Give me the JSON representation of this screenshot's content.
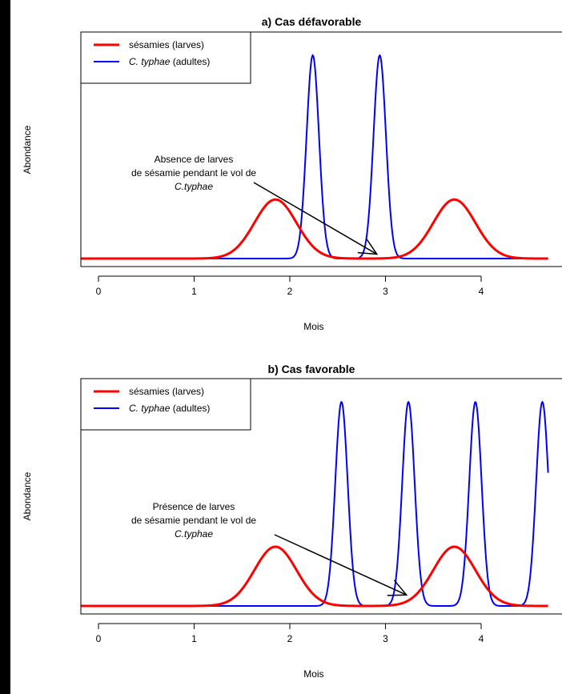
{
  "chart_data": [
    {
      "type": "line",
      "title": "a) Cas défavorable",
      "xlabel": "Mois",
      "ylabel": "Abondance",
      "xlim": [
        -0.2,
        4.7
      ],
      "xticks": [
        "0",
        "1",
        "2",
        "3",
        "4"
      ],
      "legend_placement": "top-left",
      "series": [
        {
          "name": "sésamies (larves)",
          "name_parts": {
            "italic": "",
            "normal": "sésamies (larves)"
          },
          "color": "#ff0000",
          "baseline": 0,
          "peaks": [
            {
              "center": 1.85,
              "height": 0.27,
              "sd": 0.22
            },
            {
              "center": 3.72,
              "height": 0.27,
              "sd": 0.22
            }
          ]
        },
        {
          "name": "C. typhae (adultes)",
          "name_parts": {
            "italic": "C. typhae",
            "normal": " (adultes)"
          },
          "color": "#0000ff",
          "baseline": 0,
          "peaks": [
            {
              "center": 2.24,
              "height": 0.93,
              "sd": 0.065
            },
            {
              "center": 2.94,
              "height": 0.93,
              "sd": 0.065
            }
          ]
        }
      ],
      "annotation": {
        "lines": [
          "Absence de larves",
          "de sésamie pendant le vol de",
          "C.typhae"
        ],
        "italic_line": 2,
        "arrow_target": {
          "x": 2.91,
          "y": 0.02
        }
      }
    },
    {
      "type": "line",
      "title": "b) Cas favorable",
      "xlabel": "Mois",
      "ylabel": "Abondance",
      "xlim": [
        -0.2,
        4.7
      ],
      "xticks": [
        "0",
        "1",
        "2",
        "3",
        "4"
      ],
      "legend_placement": "top-left",
      "series": [
        {
          "name": "sésamies (larves)",
          "name_parts": {
            "italic": "",
            "normal": "sésamies (larves)"
          },
          "color": "#ff0000",
          "baseline": 0,
          "peaks": [
            {
              "center": 1.85,
              "height": 0.27,
              "sd": 0.22
            },
            {
              "center": 3.72,
              "height": 0.27,
              "sd": 0.22
            }
          ]
        },
        {
          "name": "C. typhae (adultes)",
          "name_parts": {
            "italic": "C. typhae",
            "normal": " (adultes)"
          },
          "color": "#0000ff",
          "baseline": 0,
          "peaks": [
            {
              "center": 2.54,
              "height": 0.93,
              "sd": 0.065
            },
            {
              "center": 3.24,
              "height": 0.93,
              "sd": 0.065
            },
            {
              "center": 3.94,
              "height": 0.93,
              "sd": 0.065
            },
            {
              "center": 4.64,
              "height": 0.93,
              "sd": 0.065
            }
          ]
        }
      ],
      "annotation": {
        "lines": [
          "Présence de larves",
          "de sésamie pendant le vol de",
          "C.typhae"
        ],
        "italic_line": 2,
        "arrow_target": {
          "x": 3.22,
          "y": 0.05
        }
      }
    }
  ]
}
